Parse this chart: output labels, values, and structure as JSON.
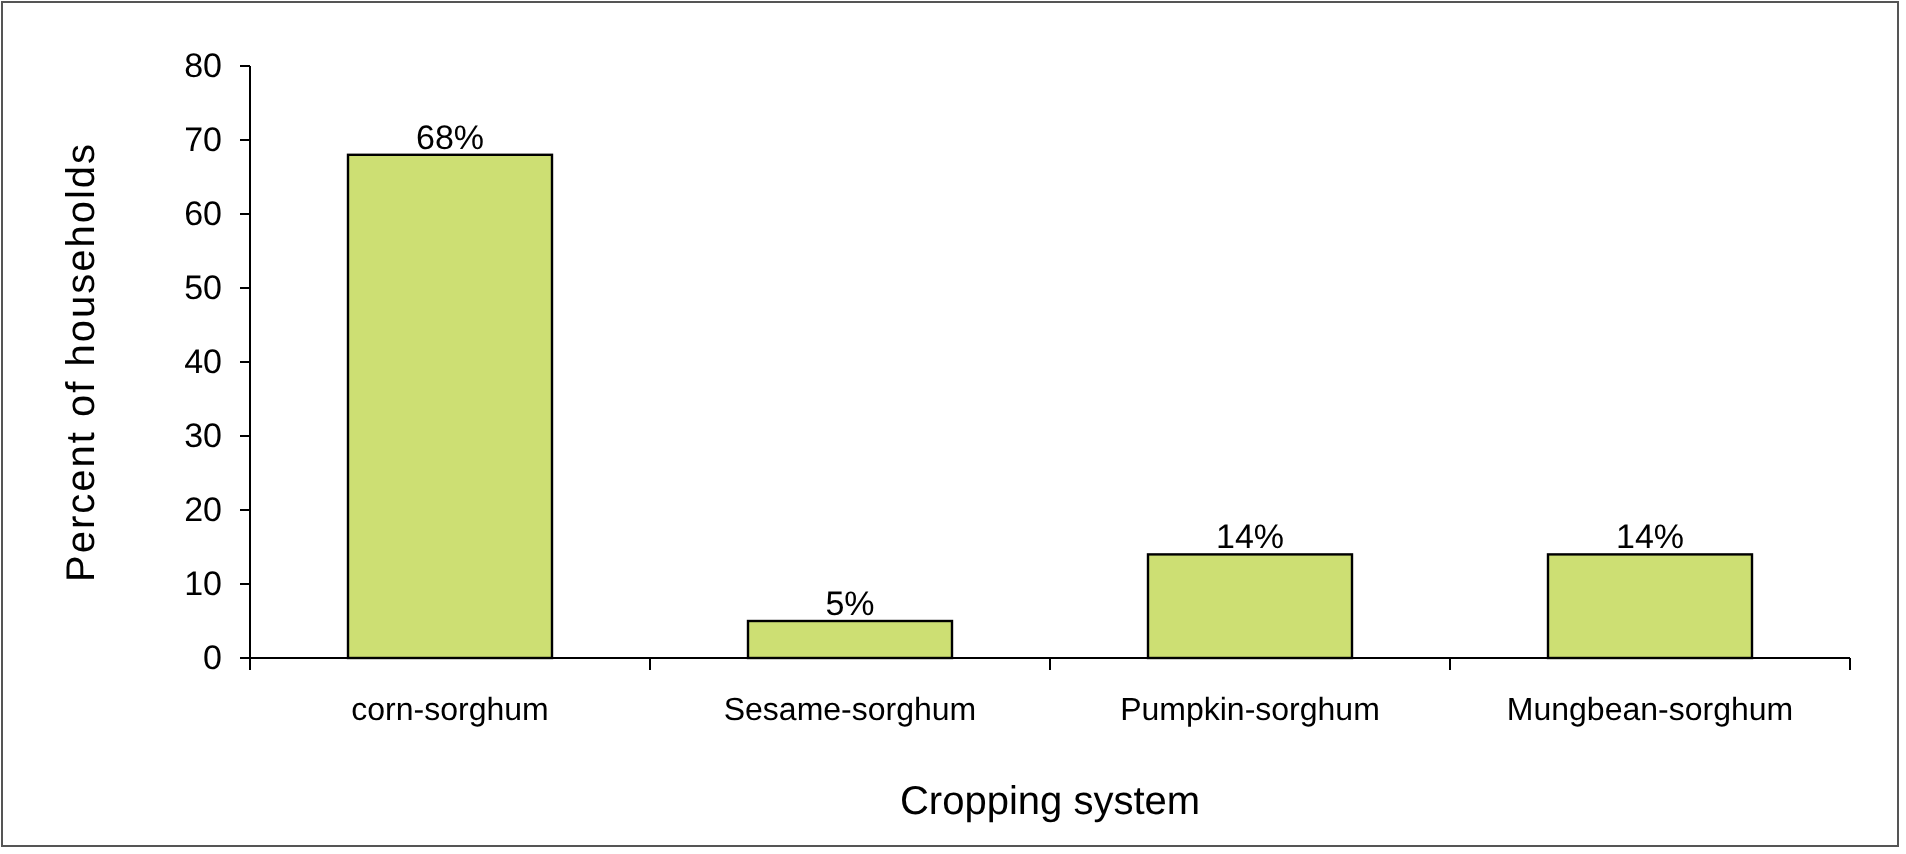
{
  "chart_data": {
    "type": "bar",
    "xlabel": "Cropping system",
    "ylabel": "Percent of households",
    "categories": [
      "corn-sorghum",
      "Sesame-sorghum",
      "Pumpkin-sorghum",
      "Mungbean-sorghum"
    ],
    "values": [
      68,
      5,
      14,
      14
    ],
    "value_labels": [
      "68%",
      "5%",
      "14%",
      "14%"
    ],
    "color": "#cddf73",
    "ylim": [
      0,
      80
    ],
    "yticks": [
      0,
      10,
      20,
      30,
      40,
      50,
      60,
      70,
      80
    ],
    "grid": false
  }
}
